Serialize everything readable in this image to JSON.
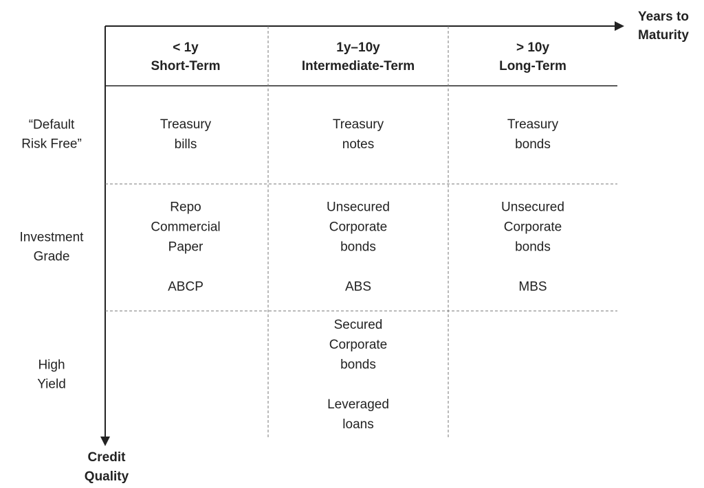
{
  "x_axis_label": [
    "Years to",
    "Maturity"
  ],
  "y_axis_label": [
    "Credit",
    "Quality"
  ],
  "columns": [
    {
      "range": "< 1y",
      "label": "Short-Term"
    },
    {
      "range": "1y–10y",
      "label": "Intermediate-Term"
    },
    {
      "range": "> 10y",
      "label": "Long-Term"
    }
  ],
  "rows": [
    {
      "label": [
        "“Default",
        "Risk Free”"
      ],
      "cells": [
        [
          [
            "Treasury",
            "bills"
          ]
        ],
        [
          [
            "Treasury",
            "notes"
          ]
        ],
        [
          [
            "Treasury",
            "bonds"
          ]
        ]
      ]
    },
    {
      "label": [
        "Investment",
        "Grade"
      ],
      "cells": [
        [
          [
            "Repo",
            "Commercial",
            "Paper"
          ],
          [
            "ABCP"
          ]
        ],
        [
          [
            "Unsecured",
            "Corporate",
            "bonds"
          ],
          [
            "ABS"
          ]
        ],
        [
          [
            "Unsecured",
            "Corporate",
            "bonds"
          ],
          [
            "MBS"
          ]
        ]
      ]
    },
    {
      "label": [
        "High",
        "Yield"
      ],
      "cells": [
        [],
        [
          [
            "Secured",
            "Corporate",
            "bonds"
          ],
          [
            "Leveraged",
            "loans"
          ]
        ],
        []
      ]
    }
  ]
}
